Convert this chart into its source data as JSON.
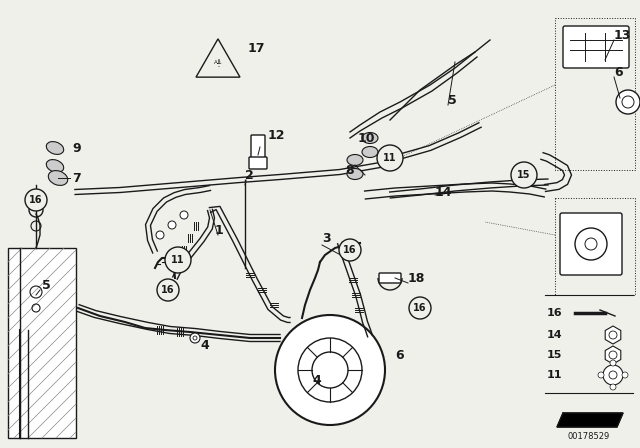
{
  "bg_color": "#f0f0eb",
  "line_color": "#1a1a1a",
  "diagram_id": "00178529",
  "figsize": [
    6.4,
    4.48
  ],
  "dpi": 100
}
